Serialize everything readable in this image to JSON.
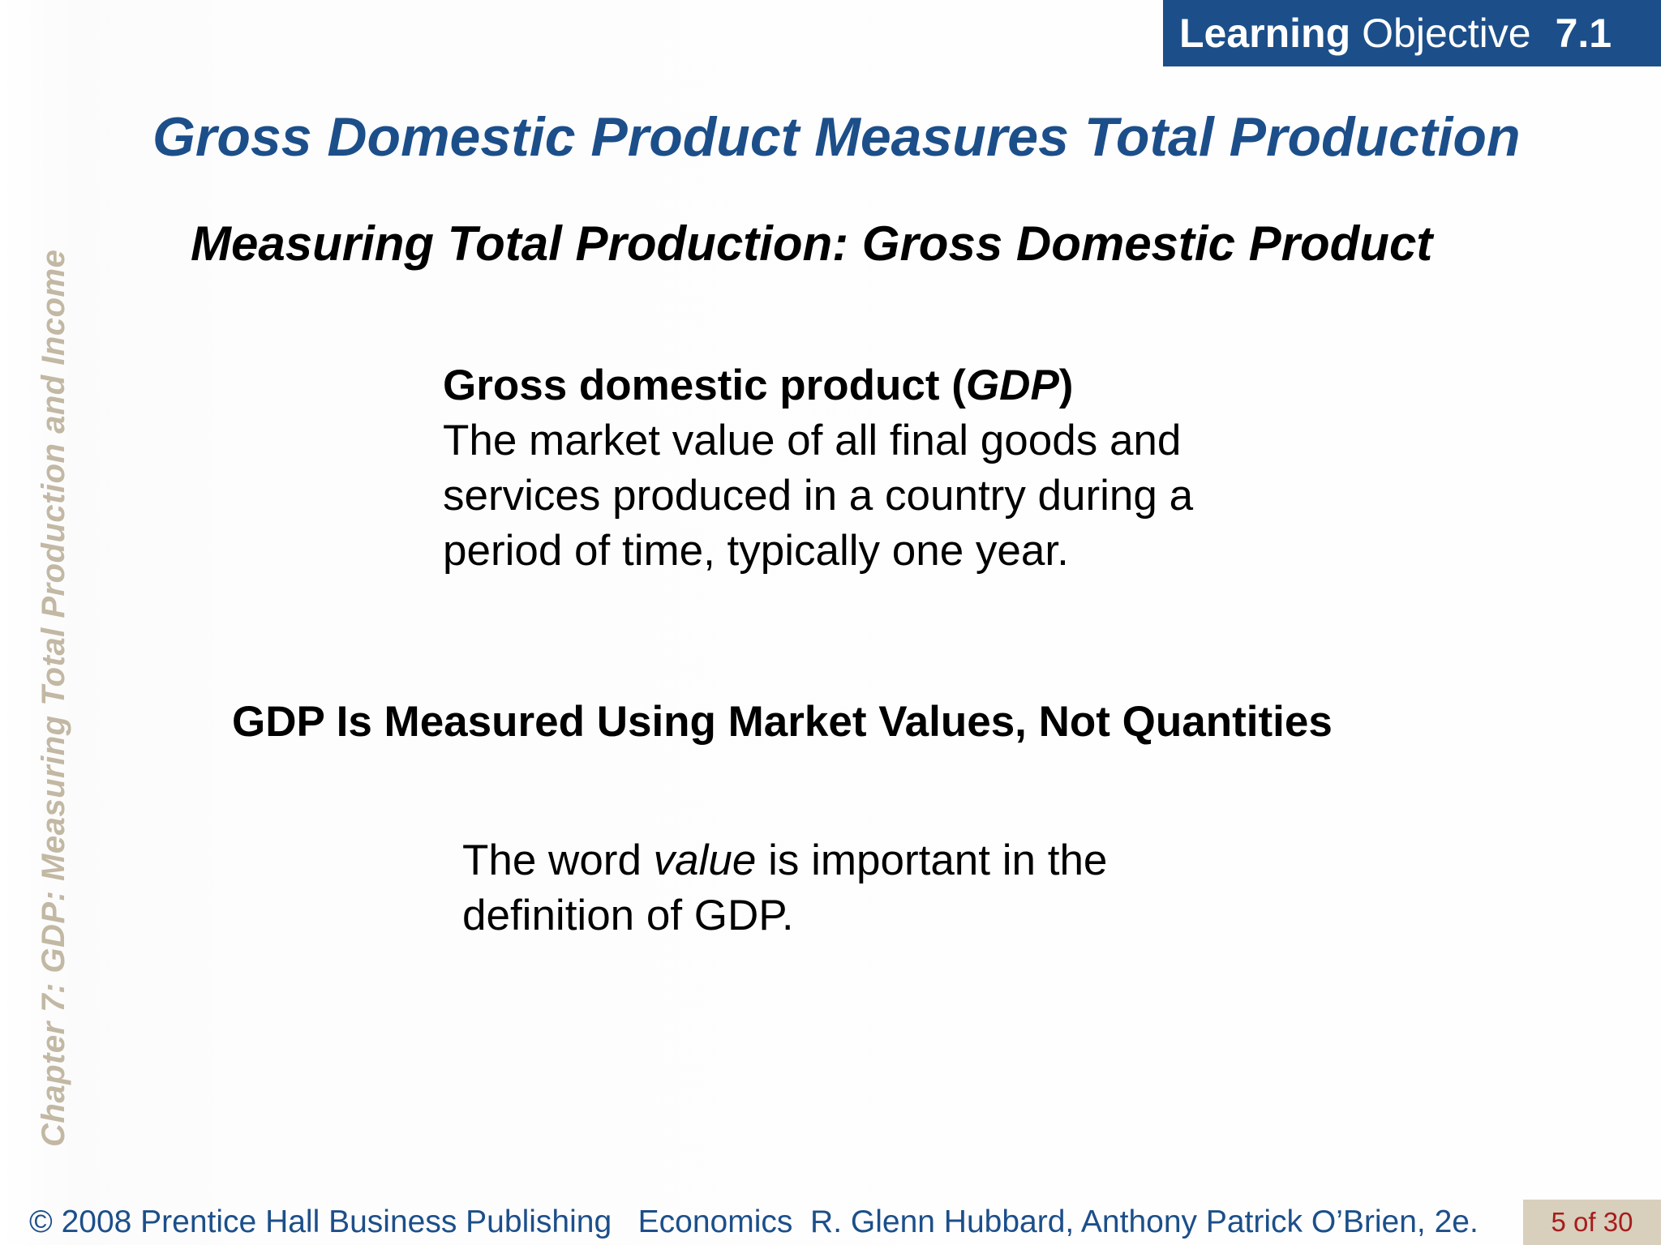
{
  "badge": {
    "learning": "Learning",
    "objective": "Objective",
    "number": "7.1"
  },
  "title": "Gross Domestic Product Measures Total Production",
  "subtitle": "Measuring Total Production:  Gross Domestic Product",
  "definition": {
    "term": "Gross domestic product (",
    "abbr": "GDP",
    "close": ")",
    "text": "The market value of all final goods and services produced in a country during a period of time, typically one year."
  },
  "section_heading": "GDP Is Measured Using Market Values, Not Quantities",
  "note": {
    "before": "The word ",
    "emphasis": "value",
    "after": " is important in the definition of GDP."
  },
  "side_label": "Chapter 7:  GDP:  Measuring Total Production and Income",
  "footer": {
    "copyright": "© 2008 Prentice Hall Business Publishing   Economics  R. Glenn Hubbard, Anthony Patrick O’Brien, 2e.",
    "page": "5 of 30"
  },
  "colors": {
    "brand_blue": "#1c4f8a",
    "side_label": "#c2b8a3",
    "page_bg": "#d8cfbd",
    "page_text": "#a51d1d"
  }
}
